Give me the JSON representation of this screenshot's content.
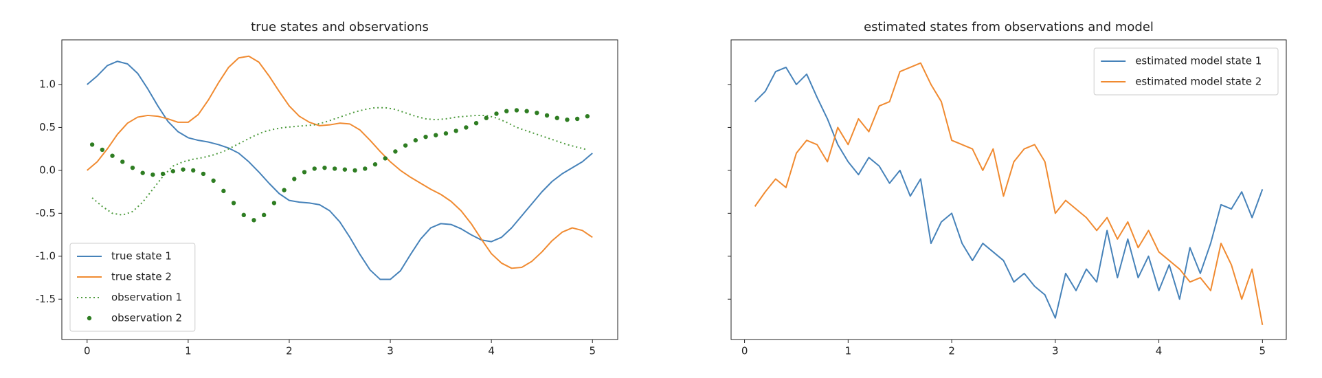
{
  "chart_data": [
    {
      "type": "line",
      "title": "true states and observations",
      "xlim": [
        -0.25,
        5.25
      ],
      "ylim": [
        -1.97,
        1.52
      ],
      "xticks": [
        0,
        1,
        2,
        3,
        4,
        5
      ],
      "yticks": [
        {
          "value": -1.5,
          "label": "-1.5"
        },
        {
          "value": -1,
          "label": "-1.0"
        },
        {
          "value": -0.5,
          "label": "-0.5"
        },
        {
          "value": 0,
          "label": "0.0"
        },
        {
          "value": 0.5,
          "label": "0.5"
        },
        {
          "value": 1,
          "label": "1.0"
        }
      ],
      "show_ytick_labels": true,
      "legend": "lower left",
      "series": [
        {
          "name": "true state 1",
          "color": "#4682b9",
          "style": "solid",
          "x": [
            0,
            0.1,
            0.2,
            0.3,
            0.4,
            0.5,
            0.6,
            0.7,
            0.8,
            0.9,
            1,
            1.1,
            1.2,
            1.3,
            1.4,
            1.5,
            1.6,
            1.7,
            1.8,
            1.9,
            2,
            2.1,
            2.2,
            2.3,
            2.4,
            2.5,
            2.6,
            2.7,
            2.8,
            2.9,
            3,
            3.1,
            3.2,
            3.3,
            3.4,
            3.5,
            3.6,
            3.7,
            3.8,
            3.9,
            4,
            4.1,
            4.2,
            4.3,
            4.4,
            4.5,
            4.6,
            4.7,
            4.8,
            4.9,
            5
          ],
          "values": [
            1.0,
            1.1,
            1.22,
            1.27,
            1.24,
            1.13,
            0.95,
            0.75,
            0.57,
            0.45,
            0.38,
            0.35,
            0.33,
            0.3,
            0.26,
            0.2,
            0.1,
            -0.02,
            -0.15,
            -0.27,
            -0.35,
            -0.37,
            -0.38,
            -0.4,
            -0.47,
            -0.6,
            -0.78,
            -0.98,
            -1.16,
            -1.27,
            -1.27,
            -1.17,
            -0.98,
            -0.8,
            -0.67,
            -0.62,
            -0.63,
            -0.68,
            -0.75,
            -0.81,
            -0.83,
            -0.78,
            -0.67,
            -0.53,
            -0.39,
            -0.25,
            -0.13,
            -0.04,
            0.03,
            0.1,
            0.2
          ]
        },
        {
          "name": "true state 2",
          "color": "#f08a30",
          "style": "solid",
          "x": [
            0,
            0.1,
            0.2,
            0.3,
            0.4,
            0.5,
            0.6,
            0.7,
            0.8,
            0.9,
            1,
            1.1,
            1.2,
            1.3,
            1.4,
            1.5,
            1.6,
            1.7,
            1.8,
            1.9,
            2,
            2.1,
            2.2,
            2.3,
            2.4,
            2.5,
            2.6,
            2.7,
            2.8,
            2.9,
            3,
            3.1,
            3.2,
            3.3,
            3.4,
            3.5,
            3.6,
            3.7,
            3.8,
            3.9,
            4,
            4.1,
            4.2,
            4.3,
            4.4,
            4.5,
            4.6,
            4.7,
            4.8,
            4.9,
            5
          ],
          "values": [
            0.0,
            0.1,
            0.25,
            0.42,
            0.55,
            0.62,
            0.64,
            0.63,
            0.6,
            0.56,
            0.56,
            0.65,
            0.82,
            1.02,
            1.2,
            1.31,
            1.33,
            1.26,
            1.1,
            0.92,
            0.75,
            0.63,
            0.56,
            0.52,
            0.53,
            0.55,
            0.54,
            0.47,
            0.35,
            0.22,
            0.1,
            0.0,
            -0.08,
            -0.15,
            -0.22,
            -0.28,
            -0.36,
            -0.47,
            -0.62,
            -0.8,
            -0.97,
            -1.08,
            -1.14,
            -1.13,
            -1.06,
            -0.95,
            -0.82,
            -0.72,
            -0.67,
            -0.7,
            -0.78
          ]
        },
        {
          "name": "observation 1",
          "color": "#4c9a3c",
          "style": "dotted",
          "x": [
            0.05,
            0.15,
            0.25,
            0.35,
            0.45,
            0.55,
            0.65,
            0.75,
            0.85,
            0.95,
            1.05,
            1.15,
            1.25,
            1.35,
            1.45,
            1.55,
            1.65,
            1.75,
            1.85,
            1.95,
            2.05,
            2.15,
            2.25,
            2.35,
            2.45,
            2.55,
            2.65,
            2.75,
            2.85,
            2.95,
            3.05,
            3.15,
            3.25,
            3.35,
            3.45,
            3.55,
            3.65,
            3.75,
            3.85,
            3.95,
            4.05,
            4.15,
            4.25,
            4.35,
            4.45,
            4.55,
            4.65,
            4.75,
            4.85,
            4.95
          ],
          "values": [
            -0.32,
            -0.42,
            -0.5,
            -0.52,
            -0.48,
            -0.37,
            -0.22,
            -0.07,
            0.05,
            0.1,
            0.13,
            0.15,
            0.18,
            0.22,
            0.28,
            0.34,
            0.4,
            0.45,
            0.48,
            0.5,
            0.51,
            0.52,
            0.53,
            0.56,
            0.6,
            0.64,
            0.68,
            0.71,
            0.73,
            0.73,
            0.71,
            0.67,
            0.63,
            0.6,
            0.59,
            0.6,
            0.62,
            0.63,
            0.64,
            0.64,
            0.61,
            0.56,
            0.5,
            0.46,
            0.42,
            0.38,
            0.34,
            0.3,
            0.27,
            0.24
          ]
        },
        {
          "name": "observation 2",
          "color": "#2e7d22",
          "style": "markers",
          "x": [
            0.05,
            0.15,
            0.25,
            0.35,
            0.45,
            0.55,
            0.65,
            0.75,
            0.85,
            0.95,
            1.05,
            1.15,
            1.25,
            1.35,
            1.45,
            1.55,
            1.65,
            1.75,
            1.85,
            1.95,
            2.05,
            2.15,
            2.25,
            2.35,
            2.45,
            2.55,
            2.65,
            2.75,
            2.85,
            2.95,
            3.05,
            3.15,
            3.25,
            3.35,
            3.45,
            3.55,
            3.65,
            3.75,
            3.85,
            3.95,
            4.05,
            4.15,
            4.25,
            4.35,
            4.45,
            4.55,
            4.65,
            4.75,
            4.85,
            4.95
          ],
          "values": [
            0.3,
            0.24,
            0.17,
            0.1,
            0.03,
            -0.03,
            -0.05,
            -0.04,
            -0.01,
            0.01,
            0.0,
            -0.04,
            -0.12,
            -0.24,
            -0.38,
            -0.52,
            -0.58,
            -0.52,
            -0.38,
            -0.23,
            -0.1,
            -0.02,
            0.02,
            0.03,
            0.02,
            0.01,
            0.0,
            0.02,
            0.07,
            0.14,
            0.22,
            0.29,
            0.35,
            0.39,
            0.41,
            0.43,
            0.46,
            0.5,
            0.55,
            0.61,
            0.66,
            0.69,
            0.7,
            0.69,
            0.67,
            0.64,
            0.61,
            0.59,
            0.6,
            0.63
          ]
        }
      ]
    },
    {
      "type": "line",
      "title": "estimated states from observations and model",
      "xlim": [
        -0.13,
        5.23
      ],
      "ylim": [
        -1.97,
        1.52
      ],
      "xticks": [
        0,
        1,
        2,
        3,
        4,
        5
      ],
      "yticks": [
        -1.5,
        -1,
        -0.5,
        0,
        0.5,
        1
      ],
      "show_ytick_labels": false,
      "legend": "upper right",
      "series": [
        {
          "name": "estimated model state 1",
          "color": "#4682b9",
          "style": "solid",
          "x": [
            0.1,
            0.2,
            0.3,
            0.4,
            0.5,
            0.6,
            0.7,
            0.8,
            0.9,
            1,
            1.1,
            1.2,
            1.3,
            1.4,
            1.5,
            1.6,
            1.7,
            1.8,
            1.9,
            2,
            2.1,
            2.2,
            2.3,
            2.4,
            2.5,
            2.6,
            2.7,
            2.8,
            2.9,
            3,
            3.1,
            3.2,
            3.3,
            3.4,
            3.5,
            3.6,
            3.7,
            3.8,
            3.9,
            4,
            4.1,
            4.2,
            4.3,
            4.4,
            4.5,
            4.6,
            4.7,
            4.8,
            4.9,
            5
          ],
          "values": [
            0.8,
            0.92,
            1.15,
            1.2,
            1.0,
            1.12,
            0.85,
            0.6,
            0.3,
            0.1,
            -0.05,
            0.15,
            0.05,
            -0.15,
            0.0,
            -0.3,
            -0.1,
            -0.85,
            -0.6,
            -0.5,
            -0.85,
            -1.05,
            -0.85,
            -0.95,
            -1.05,
            -1.3,
            -1.2,
            -1.35,
            -1.45,
            -1.72,
            -1.2,
            -1.4,
            -1.15,
            -1.3,
            -0.7,
            -1.25,
            -0.8,
            -1.25,
            -1.0,
            -1.4,
            -1.1,
            -1.5,
            -0.9,
            -1.2,
            -0.85,
            -0.4,
            -0.45,
            -0.25,
            -0.55,
            -0.22
          ]
        },
        {
          "name": "estimated model state 2",
          "color": "#f08a30",
          "style": "solid",
          "x": [
            0.1,
            0.2,
            0.3,
            0.4,
            0.5,
            0.6,
            0.7,
            0.8,
            0.9,
            1,
            1.1,
            1.2,
            1.3,
            1.4,
            1.5,
            1.6,
            1.7,
            1.8,
            1.9,
            2,
            2.1,
            2.2,
            2.3,
            2.4,
            2.5,
            2.6,
            2.7,
            2.8,
            2.9,
            3,
            3.1,
            3.2,
            3.3,
            3.4,
            3.5,
            3.6,
            3.7,
            3.8,
            3.9,
            4,
            4.1,
            4.2,
            4.3,
            4.4,
            4.5,
            4.6,
            4.7,
            4.8,
            4.9,
            5
          ],
          "values": [
            -0.42,
            -0.25,
            -0.1,
            -0.2,
            0.2,
            0.35,
            0.3,
            0.1,
            0.5,
            0.3,
            0.6,
            0.45,
            0.75,
            0.8,
            1.15,
            1.2,
            1.25,
            1.0,
            0.8,
            0.35,
            0.3,
            0.25,
            0.0,
            0.25,
            -0.3,
            0.1,
            0.25,
            0.3,
            0.1,
            -0.5,
            -0.35,
            -0.45,
            -0.55,
            -0.7,
            -0.55,
            -0.8,
            -0.6,
            -0.9,
            -0.7,
            -0.95,
            -1.05,
            -1.15,
            -1.3,
            -1.25,
            -1.4,
            -0.85,
            -1.1,
            -1.5,
            -1.15,
            -1.8
          ]
        }
      ]
    }
  ]
}
